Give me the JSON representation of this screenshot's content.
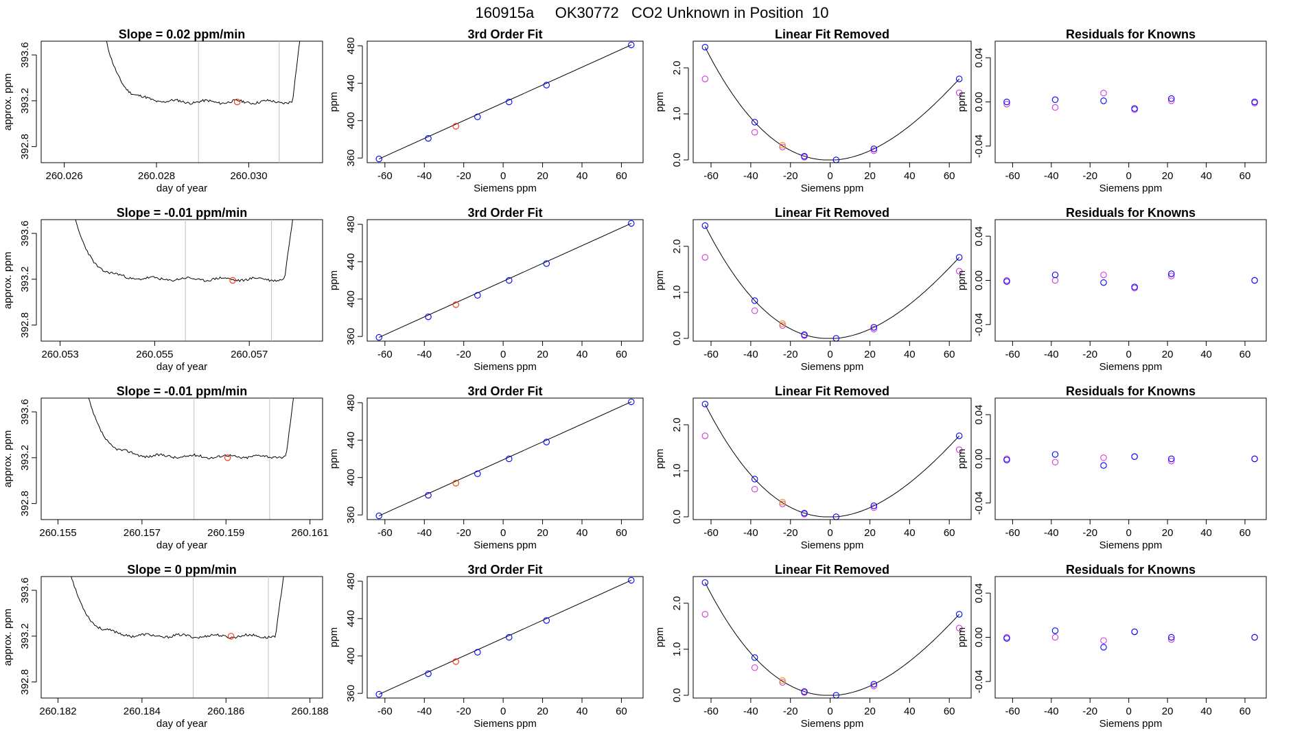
{
  "suptitle": "160915a     OK30772   CO2 Unknown in Position  10",
  "colors": {
    "line": "#000000",
    "grid": "#bfbfbf",
    "unknown": "#ff2a00",
    "blue": "#0000ff",
    "magenta": "#d33ad3",
    "orange": "#ff9900"
  },
  "rows": [
    {
      "slope_title": "Slope =  0.02  ppm/min",
      "timeseries": {
        "type": "line",
        "xlabel": "day of year",
        "ylabel": "approx. ppm",
        "xlim": [
          260.0255,
          260.0316
        ],
        "ylim": [
          392.66,
          393.72
        ],
        "xticks": [
          "260.026",
          "260.028",
          "260.030"
        ],
        "yticks": [
          "392.8",
          "393.2",
          "393.6"
        ],
        "x_start": 260.0269,
        "x_end": 260.03116,
        "plateau": 393.19,
        "win": [
          260.02891,
          260.03066
        ],
        "marker": [
          260.02975,
          393.19
        ],
        "seed": 11
      },
      "fit": {
        "x": [
          -63,
          -38,
          -13,
          3,
          22,
          65
        ],
        "y": [
          359,
          381,
          404,
          420,
          438,
          481
        ],
        "unknown": [
          -24,
          394
        ]
      },
      "lin": {
        "curve": [
          [
            -63,
            2.45
          ],
          [
            -38,
            0.82
          ],
          [
            -13,
            0.08
          ],
          [
            3,
            0.0
          ],
          [
            22,
            0.24
          ],
          [
            65,
            1.76
          ]
        ],
        "magenta": [
          [
            -63,
            1.76
          ],
          [
            -38,
            0.6
          ],
          [
            -24,
            0.28
          ],
          [
            -13,
            0.06
          ],
          [
            22,
            0.2
          ],
          [
            65,
            1.46
          ]
        ],
        "orange": [
          [
            -24,
            0.32
          ]
        ]
      },
      "resid": {
        "blue": [
          [
            -63,
            0.0
          ],
          [
            -38,
            0.002
          ],
          [
            -13,
            0.001
          ],
          [
            3,
            -0.006
          ],
          [
            22,
            0.003
          ],
          [
            65,
            0.0
          ]
        ],
        "magenta": [
          [
            -63,
            -0.002
          ],
          [
            -38,
            -0.005
          ],
          [
            -13,
            0.008
          ],
          [
            3,
            -0.007
          ],
          [
            22,
            0.001
          ],
          [
            65,
            -0.001
          ]
        ]
      }
    },
    {
      "slope_title": "Slope =  -0.01  ppm/min",
      "timeseries": {
        "type": "line",
        "xlabel": "day of year",
        "ylabel": "approx. ppm",
        "xlim": [
          260.0526,
          260.05855
        ],
        "ylim": [
          392.66,
          393.72
        ],
        "xticks": [
          "260.053",
          "260.055",
          "260.057"
        ],
        "yticks": [
          "392.8",
          "393.2",
          "393.6"
        ],
        "x_start": 260.0533,
        "x_end": 260.05798,
        "plateau": 393.2,
        "win": [
          260.05565,
          260.05747
        ],
        "marker": [
          260.05665,
          393.19
        ],
        "seed": 23
      },
      "fit": {
        "x": [
          -63,
          -38,
          -13,
          3,
          22,
          65
        ],
        "y": [
          359,
          381,
          404,
          420,
          438,
          481
        ],
        "unknown": [
          -24,
          394
        ]
      },
      "lin": {
        "curve": [
          [
            -63,
            2.45
          ],
          [
            -38,
            0.82
          ],
          [
            -13,
            0.08
          ],
          [
            3,
            0.0
          ],
          [
            22,
            0.24
          ],
          [
            65,
            1.76
          ]
        ],
        "magenta": [
          [
            -63,
            1.76
          ],
          [
            -38,
            0.6
          ],
          [
            -24,
            0.28
          ],
          [
            -13,
            0.06
          ],
          [
            22,
            0.2
          ],
          [
            65,
            1.46
          ]
        ],
        "orange": [
          [
            -24,
            0.32
          ]
        ]
      },
      "resid": {
        "blue": [
          [
            -63,
            -0.001
          ],
          [
            -38,
            0.005
          ],
          [
            -13,
            -0.002
          ],
          [
            3,
            -0.006
          ],
          [
            22,
            0.006
          ],
          [
            65,
            0.0
          ]
        ],
        "magenta": [
          [
            -63,
            0.0
          ],
          [
            -38,
            0.0
          ],
          [
            -13,
            0.005
          ],
          [
            3,
            -0.007
          ],
          [
            22,
            0.004
          ],
          [
            65,
            0.0
          ]
        ]
      }
    },
    {
      "slope_title": "Slope =  -0.01  ppm/min",
      "timeseries": {
        "type": "line",
        "xlabel": "day of year",
        "ylabel": "approx. ppm",
        "xlim": [
          260.1546,
          260.1613
        ],
        "ylim": [
          392.66,
          393.72
        ],
        "xticks": [
          "260.155",
          "260.157",
          "260.159",
          "260.161"
        ],
        "yticks": [
          "392.8",
          "393.2",
          "393.6"
        ],
        "x_start": 260.1557,
        "x_end": 260.16068,
        "plateau": 393.21,
        "win": [
          260.15824,
          260.16004
        ],
        "marker": [
          260.15904,
          393.2
        ],
        "seed": 37
      },
      "fit": {
        "x": [
          -63,
          -38,
          -13,
          3,
          22,
          65
        ],
        "y": [
          359,
          381,
          404,
          420,
          438,
          481
        ],
        "unknown": [
          -24,
          394
        ]
      },
      "lin": {
        "curve": [
          [
            -63,
            2.45
          ],
          [
            -38,
            0.82
          ],
          [
            -13,
            0.08
          ],
          [
            3,
            0.0
          ],
          [
            22,
            0.24
          ],
          [
            65,
            1.76
          ]
        ],
        "magenta": [
          [
            -63,
            1.76
          ],
          [
            -38,
            0.6
          ],
          [
            -24,
            0.28
          ],
          [
            -13,
            0.06
          ],
          [
            22,
            0.2
          ],
          [
            65,
            1.46
          ]
        ],
        "orange": [
          [
            -24,
            0.32
          ]
        ]
      },
      "resid": {
        "blue": [
          [
            -63,
            -0.001
          ],
          [
            -38,
            0.004
          ],
          [
            -13,
            -0.006
          ],
          [
            3,
            0.002
          ],
          [
            22,
            0.0
          ],
          [
            65,
            0.0
          ]
        ],
        "magenta": [
          [
            -63,
            0.0
          ],
          [
            -38,
            -0.003
          ],
          [
            -13,
            0.001
          ],
          [
            3,
            0.002
          ],
          [
            22,
            -0.002
          ],
          [
            65,
            0.0
          ]
        ]
      }
    },
    {
      "slope_title": "Slope =  0  ppm/min",
      "timeseries": {
        "type": "line",
        "xlabel": "day of year",
        "ylabel": "approx. ppm",
        "xlim": [
          260.1816,
          260.1883
        ],
        "ylim": [
          392.66,
          393.72
        ],
        "xticks": [
          "260.182",
          "260.184",
          "260.186",
          "260.188"
        ],
        "yticks": [
          "392.8",
          "393.2",
          "393.6"
        ],
        "x_start": 260.1823,
        "x_end": 260.18744,
        "plateau": 393.2,
        "win": [
          260.18522,
          260.18701
        ],
        "marker": [
          260.18612,
          393.2
        ],
        "seed": 53
      },
      "fit": {
        "x": [
          -63,
          -38,
          -13,
          3,
          22,
          65
        ],
        "y": [
          359,
          381,
          404,
          420,
          438,
          481
        ],
        "unknown": [
          -24,
          394
        ]
      },
      "lin": {
        "curve": [
          [
            -63,
            2.45
          ],
          [
            -38,
            0.82
          ],
          [
            -13,
            0.08
          ],
          [
            3,
            0.0
          ],
          [
            22,
            0.24
          ],
          [
            65,
            1.76
          ]
        ],
        "magenta": [
          [
            -63,
            1.76
          ],
          [
            -38,
            0.6
          ],
          [
            -24,
            0.28
          ],
          [
            -13,
            0.06
          ],
          [
            22,
            0.2
          ],
          [
            65,
            1.46
          ]
        ],
        "orange": [
          [
            -24,
            0.32
          ]
        ]
      },
      "resid": {
        "blue": [
          [
            -63,
            -0.001
          ],
          [
            -38,
            0.006
          ],
          [
            -13,
            -0.009
          ],
          [
            3,
            0.005
          ],
          [
            22,
            0.0
          ],
          [
            65,
            0.0
          ]
        ],
        "magenta": [
          [
            -63,
            0.0
          ],
          [
            -38,
            0.0
          ],
          [
            -13,
            -0.003
          ],
          [
            3,
            0.005
          ],
          [
            22,
            -0.002
          ],
          [
            65,
            0.0
          ]
        ]
      }
    }
  ],
  "fit_panel": {
    "title": "3rd Order Fit",
    "xlabel": "Siemens ppm",
    "ylabel": "ppm",
    "xlim": [
      -69,
      71
    ],
    "ylim": [
      355,
      485
    ],
    "xticks": [
      -60,
      -40,
      -20,
      0,
      20,
      40,
      60
    ],
    "yticks": [
      360,
      400,
      440,
      480
    ]
  },
  "lin_panel": {
    "title": "Linear Fit Removed",
    "xlabel": "Siemens ppm",
    "ylabel": "ppm",
    "xlim": [
      -69,
      71
    ],
    "ylim": [
      -0.06,
      2.58
    ],
    "xticks": [
      -60,
      -40,
      -20,
      0,
      20,
      40,
      60
    ],
    "yticks": [
      "0.0",
      "1.0",
      "2.0"
    ]
  },
  "resid_panel": {
    "title": "Residuals for Knowns",
    "xlabel": "Siemens ppm",
    "ylabel": "ppm",
    "xlim": [
      -69,
      71
    ],
    "ylim": [
      -0.055,
      0.055
    ],
    "xticks": [
      -60,
      -40,
      -20,
      0,
      20,
      40,
      60
    ],
    "yticks": [
      "-0.04",
      "0.00",
      "0.04"
    ]
  }
}
